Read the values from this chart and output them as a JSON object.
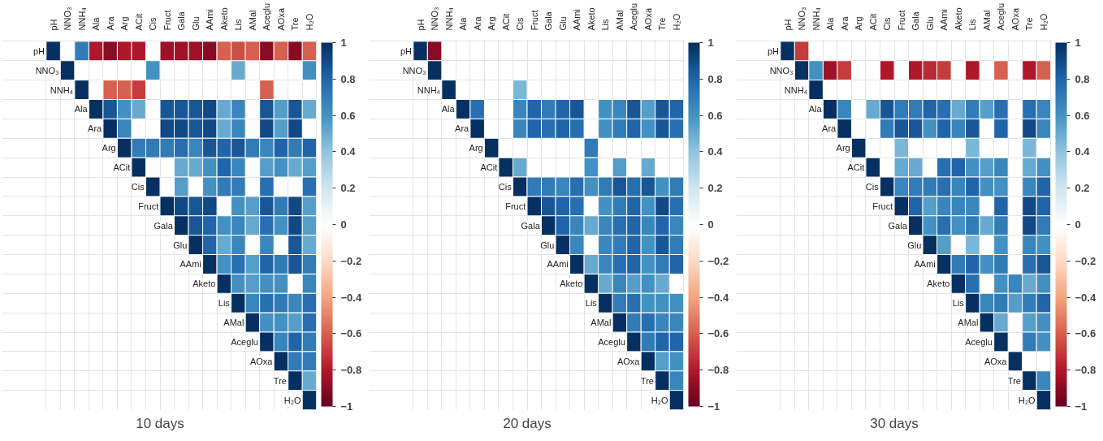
{
  "chart_data": [
    {
      "type": "heatmap",
      "title": "10 days",
      "grid": true,
      "clim": [
        -1,
        1
      ],
      "cticks": [
        -1,
        -0.8,
        -0.6,
        -0.4,
        -0.2,
        0,
        0.2,
        0.4,
        0.6,
        0.8,
        1
      ],
      "categories": [
        "pH",
        "NNO₃",
        "NNH₄",
        "Ala",
        "Ara",
        "Arg",
        "ACit",
        "Cis",
        "Fruct",
        "Gala",
        "Glu",
        "AAmi",
        "Aketo",
        "Lis",
        "AMal",
        "Aceglu",
        "AOxa",
        "Tre",
        "H₂O"
      ],
      "y_categories": [
        "pH",
        "NNO₃",
        "NNH₄",
        "Ala",
        "Ara",
        "Arg",
        "ACit",
        "Cis",
        "Fruct",
        "Gala",
        "Glu",
        "AAmi",
        "Aketo",
        "Lis",
        "AMal",
        "Aceglu",
        "AOxa",
        "Tre",
        "H₂O"
      ],
      "cells": [
        [
          1,
          null,
          0.7,
          -0.8,
          -0.9,
          -0.8,
          -0.8,
          null,
          -0.85,
          -0.85,
          -0.85,
          -0.9,
          -0.6,
          -0.65,
          -0.6,
          -0.9,
          -0.6,
          -0.9,
          -0.6
        ],
        [
          null,
          1,
          null,
          null,
          null,
          null,
          null,
          0.6,
          null,
          null,
          null,
          null,
          null,
          0.5,
          null,
          null,
          null,
          null,
          0.6
        ],
        [
          null,
          null,
          1,
          null,
          -0.6,
          -0.6,
          -0.7,
          null,
          null,
          null,
          null,
          null,
          null,
          null,
          null,
          -0.6,
          null,
          null,
          null
        ],
        [
          null,
          null,
          null,
          1,
          0.85,
          0.6,
          0.5,
          null,
          0.85,
          0.85,
          0.85,
          0.9,
          0.5,
          0.65,
          null,
          0.85,
          0.55,
          0.85,
          0.5
        ],
        [
          null,
          null,
          null,
          null,
          1,
          0.65,
          null,
          null,
          0.9,
          0.9,
          0.85,
          0.9,
          0.5,
          0.65,
          null,
          0.9,
          0.55,
          0.9,
          null
        ],
        [
          null,
          null,
          null,
          null,
          null,
          1,
          0.7,
          0.7,
          0.7,
          0.75,
          0.65,
          0.85,
          0.8,
          0.85,
          0.7,
          0.65,
          0.8,
          0.7,
          0.8
        ],
        [
          null,
          null,
          null,
          null,
          null,
          null,
          1,
          null,
          null,
          0.5,
          0.5,
          0.6,
          0.8,
          0.65,
          null,
          0.55,
          0.6,
          0.5,
          0.55
        ],
        [
          null,
          null,
          null,
          null,
          null,
          null,
          null,
          1,
          null,
          0.55,
          null,
          0.6,
          0.7,
          0.7,
          null,
          0.75,
          null,
          null,
          0.75
        ],
        [
          null,
          null,
          null,
          null,
          null,
          null,
          null,
          null,
          1,
          0.9,
          0.85,
          0.9,
          null,
          0.6,
          0.55,
          0.85,
          0.7,
          0.9,
          0.55
        ],
        [
          null,
          null,
          null,
          null,
          null,
          null,
          null,
          null,
          null,
          1,
          0.85,
          0.8,
          0.6,
          0.65,
          0.5,
          0.75,
          0.6,
          0.9,
          0.55
        ],
        [
          null,
          null,
          null,
          null,
          null,
          null,
          null,
          null,
          null,
          null,
          1,
          0.8,
          0.5,
          0.65,
          null,
          0.65,
          null,
          0.85,
          0.5
        ],
        [
          null,
          null,
          null,
          null,
          null,
          null,
          null,
          null,
          null,
          null,
          null,
          1,
          0.6,
          0.75,
          0.55,
          0.8,
          0.7,
          0.85,
          0.7
        ],
        [
          null,
          null,
          null,
          null,
          null,
          null,
          null,
          null,
          null,
          null,
          null,
          null,
          1,
          0.6,
          0.55,
          0.6,
          0.6,
          null,
          0.65
        ],
        [
          null,
          null,
          null,
          null,
          null,
          null,
          null,
          null,
          null,
          null,
          null,
          null,
          null,
          1,
          0.65,
          0.75,
          0.7,
          0.65,
          0.75
        ],
        [
          null,
          null,
          null,
          null,
          null,
          null,
          null,
          null,
          null,
          null,
          null,
          null,
          null,
          null,
          1,
          0.6,
          0.6,
          0.55,
          0.75
        ],
        [
          null,
          null,
          null,
          null,
          null,
          null,
          null,
          null,
          null,
          null,
          null,
          null,
          null,
          null,
          null,
          1,
          0.65,
          0.8,
          0.7
        ],
        [
          null,
          null,
          null,
          null,
          null,
          null,
          null,
          null,
          null,
          null,
          null,
          null,
          null,
          null,
          null,
          null,
          1,
          0.7,
          0.7
        ],
        [
          null,
          null,
          null,
          null,
          null,
          null,
          null,
          null,
          null,
          null,
          null,
          null,
          null,
          null,
          null,
          null,
          null,
          1,
          0.5
        ],
        [
          null,
          null,
          null,
          null,
          null,
          null,
          null,
          null,
          null,
          null,
          null,
          null,
          null,
          null,
          null,
          null,
          null,
          null,
          1
        ]
      ]
    },
    {
      "type": "heatmap",
      "title": "20 days",
      "grid": true,
      "clim": [
        -1,
        1
      ],
      "cticks": [
        -1,
        -0.8,
        -0.6,
        -0.4,
        -0.2,
        0,
        0.2,
        0.4,
        0.6,
        0.8,
        1
      ],
      "categories": [
        "pH",
        "NNO₃",
        "NNH₄",
        "Ala",
        "Ara",
        "Arg",
        "ACit",
        "Cis",
        "Fruct",
        "Gala",
        "Glu",
        "AAmi",
        "Aketo",
        "Lis",
        "AMal",
        "Aceglu",
        "AOxa",
        "Tre",
        "H₂O"
      ],
      "y_categories": [
        "pH",
        "NNO₃",
        "NNH₄",
        "Ala",
        "Ara",
        "Arg",
        "ACit",
        "Cis",
        "Fruct",
        "Gala",
        "Glu",
        "AAmi",
        "Aketo",
        "Lis",
        "AMal",
        "Aceglu",
        "AOxa",
        "Tre",
        "H₂O"
      ],
      "cells": [
        [
          1,
          -0.9,
          null,
          null,
          null,
          null,
          null,
          null,
          null,
          null,
          null,
          null,
          null,
          null,
          null,
          null,
          null,
          null,
          null
        ],
        [
          null,
          1,
          null,
          null,
          null,
          null,
          null,
          null,
          null,
          null,
          null,
          null,
          null,
          null,
          null,
          null,
          null,
          null,
          null
        ],
        [
          null,
          null,
          1,
          null,
          null,
          null,
          null,
          0.45,
          null,
          null,
          null,
          null,
          null,
          null,
          null,
          null,
          null,
          null,
          null
        ],
        [
          null,
          null,
          null,
          1,
          0.75,
          null,
          null,
          0.65,
          0.8,
          0.7,
          0.8,
          0.85,
          null,
          0.6,
          0.65,
          0.85,
          0.55,
          0.85,
          0.8
        ],
        [
          null,
          null,
          null,
          null,
          1,
          null,
          null,
          0.65,
          0.8,
          0.75,
          0.8,
          0.75,
          null,
          0.6,
          0.7,
          0.8,
          0.6,
          0.85,
          0.75
        ],
        [
          null,
          null,
          null,
          null,
          null,
          1,
          null,
          null,
          null,
          null,
          null,
          null,
          0.7,
          null,
          null,
          null,
          null,
          null,
          null
        ],
        [
          null,
          null,
          null,
          null,
          null,
          null,
          1,
          0.5,
          null,
          null,
          null,
          null,
          0.6,
          null,
          0.55,
          null,
          0.5,
          null,
          null
        ],
        [
          null,
          null,
          null,
          null,
          null,
          null,
          null,
          1,
          0.7,
          0.7,
          0.65,
          0.75,
          0.6,
          0.7,
          0.85,
          0.75,
          0.85,
          0.6,
          0.7
        ],
        [
          null,
          null,
          null,
          null,
          null,
          null,
          null,
          null,
          1,
          0.85,
          0.8,
          0.75,
          null,
          0.6,
          0.7,
          0.8,
          0.6,
          0.9,
          0.75
        ],
        [
          null,
          null,
          null,
          null,
          null,
          null,
          null,
          null,
          null,
          1,
          0.8,
          0.65,
          0.5,
          0.65,
          0.75,
          0.8,
          0.65,
          0.8,
          0.65
        ],
        [
          null,
          null,
          null,
          null,
          null,
          null,
          null,
          null,
          null,
          null,
          1,
          0.65,
          null,
          0.65,
          0.7,
          0.8,
          0.6,
          0.85,
          0.7
        ],
        [
          null,
          null,
          null,
          null,
          null,
          null,
          null,
          null,
          null,
          null,
          null,
          1,
          0.5,
          0.65,
          0.75,
          0.8,
          0.6,
          0.7,
          0.8
        ],
        [
          null,
          null,
          null,
          null,
          null,
          null,
          null,
          null,
          null,
          null,
          null,
          null,
          1,
          0.5,
          0.65,
          0.55,
          0.6,
          0.5,
          null
        ],
        [
          null,
          null,
          null,
          null,
          null,
          null,
          null,
          null,
          null,
          null,
          null,
          null,
          null,
          1,
          0.7,
          0.75,
          0.6,
          0.6,
          0.6
        ],
        [
          null,
          null,
          null,
          null,
          null,
          null,
          null,
          null,
          null,
          null,
          null,
          null,
          null,
          null,
          1,
          0.7,
          0.75,
          0.65,
          0.65
        ],
        [
          null,
          null,
          null,
          null,
          null,
          null,
          null,
          null,
          null,
          null,
          null,
          null,
          null,
          null,
          null,
          1,
          0.7,
          0.8,
          0.8
        ],
        [
          null,
          null,
          null,
          null,
          null,
          null,
          null,
          null,
          null,
          null,
          null,
          null,
          null,
          null,
          null,
          null,
          1,
          0.55,
          0.6
        ],
        [
          null,
          null,
          null,
          null,
          null,
          null,
          null,
          null,
          null,
          null,
          null,
          null,
          null,
          null,
          null,
          null,
          null,
          1,
          0.65
        ],
        [
          null,
          null,
          null,
          null,
          null,
          null,
          null,
          null,
          null,
          null,
          null,
          null,
          null,
          null,
          null,
          null,
          null,
          null,
          1
        ]
      ]
    },
    {
      "type": "heatmap",
      "title": "30 days",
      "grid": true,
      "clim": [
        -1,
        1
      ],
      "cticks": [
        -1,
        -0.8,
        -0.6,
        -0.4,
        -0.2,
        0,
        0.2,
        0.4,
        0.6,
        0.8,
        1
      ],
      "categories": [
        "pH",
        "NNO₃",
        "NNH₄",
        "Ala",
        "Ara",
        "Arg",
        "ACit",
        "Cis",
        "Fruct",
        "Gala",
        "Glu",
        "AAmi",
        "Aketo",
        "Lis",
        "AMal",
        "Aceglu",
        "AOxa",
        "Tre",
        "H₂O"
      ],
      "y_categories": [
        "pH",
        "NNO₃",
        "NNH₄",
        "Ala",
        "Ara",
        "Arg",
        "ACit",
        "Cis",
        "Fruct",
        "Gala",
        "Glu",
        "AAmi",
        "Aketo",
        "Lis",
        "AMal",
        "Aceglu",
        "AOxa",
        "Tre",
        "H₂O"
      ],
      "cells": [
        [
          1,
          -0.7,
          null,
          null,
          null,
          null,
          null,
          null,
          null,
          null,
          null,
          null,
          null,
          null,
          null,
          null,
          null,
          null,
          null
        ],
        [
          null,
          1,
          0.6,
          -0.85,
          -0.7,
          null,
          null,
          -0.8,
          null,
          -0.8,
          -0.75,
          -0.7,
          null,
          -0.8,
          null,
          -0.6,
          null,
          -0.8,
          -0.6
        ],
        [
          null,
          null,
          1,
          null,
          null,
          null,
          null,
          null,
          null,
          null,
          null,
          null,
          null,
          null,
          null,
          null,
          null,
          null,
          null
        ],
        [
          null,
          null,
          null,
          1,
          0.65,
          null,
          0.5,
          0.85,
          0.7,
          0.7,
          0.8,
          0.75,
          0.5,
          0.7,
          0.55,
          0.75,
          null,
          0.75,
          0.65
        ],
        [
          null,
          null,
          null,
          null,
          1,
          null,
          null,
          0.7,
          0.85,
          0.85,
          0.6,
          0.8,
          0.65,
          0.85,
          null,
          0.8,
          null,
          0.9,
          0.65
        ],
        [
          null,
          null,
          null,
          null,
          null,
          1,
          null,
          null,
          0.45,
          null,
          null,
          null,
          null,
          0.45,
          null,
          null,
          null,
          0.45,
          null
        ],
        [
          null,
          null,
          null,
          null,
          null,
          null,
          1,
          null,
          0.5,
          0.5,
          null,
          0.75,
          0.8,
          0.6,
          0.55,
          0.65,
          null,
          0.5,
          0.6
        ],
        [
          null,
          null,
          null,
          null,
          null,
          null,
          null,
          1,
          0.65,
          0.7,
          0.7,
          0.75,
          0.65,
          0.8,
          0.6,
          0.6,
          null,
          0.65,
          0.8
        ],
        [
          null,
          null,
          null,
          null,
          null,
          null,
          null,
          null,
          1,
          0.8,
          0.55,
          0.65,
          0.65,
          0.65,
          null,
          0.8,
          null,
          0.9,
          0.8
        ],
        [
          null,
          null,
          null,
          null,
          null,
          null,
          null,
          null,
          null,
          1,
          0.6,
          0.75,
          0.6,
          0.7,
          0.5,
          0.7,
          null,
          0.9,
          0.7
        ],
        [
          null,
          null,
          null,
          null,
          null,
          null,
          null,
          null,
          null,
          null,
          1,
          0.55,
          null,
          0.45,
          null,
          0.6,
          null,
          0.65,
          0.6
        ],
        [
          null,
          null,
          null,
          null,
          null,
          null,
          null,
          null,
          null,
          null,
          null,
          1,
          0.7,
          0.8,
          0.6,
          0.7,
          null,
          0.75,
          0.85
        ],
        [
          null,
          null,
          null,
          null,
          null,
          null,
          null,
          null,
          null,
          null,
          null,
          null,
          1,
          0.75,
          null,
          0.6,
          0.65,
          0.5,
          0.6
        ],
        [
          null,
          null,
          null,
          null,
          null,
          null,
          null,
          null,
          null,
          null,
          null,
          null,
          null,
          1,
          0.65,
          0.7,
          0.55,
          0.7,
          0.8
        ],
        [
          null,
          null,
          null,
          null,
          null,
          null,
          null,
          null,
          null,
          null,
          null,
          null,
          null,
          null,
          1,
          0.5,
          null,
          0.55,
          0.6
        ],
        [
          null,
          null,
          null,
          null,
          null,
          null,
          null,
          null,
          null,
          null,
          null,
          null,
          null,
          null,
          null,
          1,
          null,
          0.7,
          0.6
        ],
        [
          null,
          null,
          null,
          null,
          null,
          null,
          null,
          null,
          null,
          null,
          null,
          null,
          null,
          null,
          null,
          null,
          1,
          null,
          null
        ],
        [
          null,
          null,
          null,
          null,
          null,
          null,
          null,
          null,
          null,
          null,
          null,
          null,
          null,
          null,
          null,
          null,
          null,
          1,
          0.65
        ],
        [
          null,
          null,
          null,
          null,
          null,
          null,
          null,
          null,
          null,
          null,
          null,
          null,
          null,
          null,
          null,
          null,
          null,
          null,
          1
        ]
      ]
    }
  ]
}
